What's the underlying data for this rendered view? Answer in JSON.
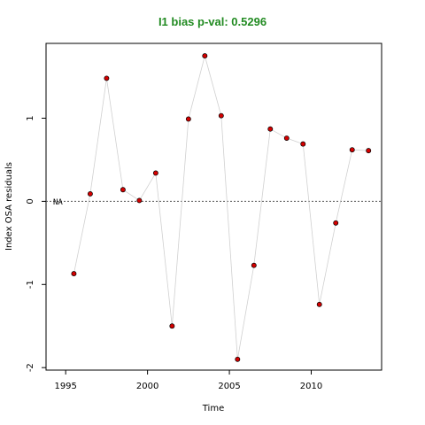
{
  "chart_data": {
    "type": "scatter",
    "title": "I1 bias p-val: 0.5296",
    "xlabel": "Time",
    "ylabel": "Index OSA residuals",
    "xlim": [
      1993.8,
      2014.3
    ],
    "ylim": [
      -2.03,
      1.9
    ],
    "xticks": [
      1995,
      2000,
      2005,
      2010
    ],
    "xtick_labels": [
      "1995",
      "2000",
      "2005",
      "2010"
    ],
    "yticks": [
      -2,
      -1,
      0,
      1
    ],
    "ytick_labels": [
      "-2",
      "-1",
      "0",
      "1"
    ],
    "reference_line": 0,
    "annotation": "NA",
    "grid": false,
    "colors": {
      "title": "#228b22",
      "points": "#d40000",
      "point_edge": "#000000",
      "connector": "#d0d0d0",
      "reference": "#555555"
    },
    "x": [
      1995.5,
      1996.5,
      1997.5,
      1998.5,
      1999.5,
      2000.5,
      2001.5,
      2002.5,
      2003.5,
      2004.5,
      2005.5,
      2006.5,
      2007.5,
      2008.5,
      2009.5,
      2010.5,
      2011.5,
      2012.5,
      2013.5
    ],
    "y": [
      -0.87,
      0.09,
      1.48,
      0.14,
      0.01,
      0.34,
      -1.5,
      0.99,
      1.75,
      1.03,
      -1.9,
      -0.77,
      0.87,
      0.76,
      0.69,
      -1.24,
      -0.26,
      0.62,
      0.61
    ]
  }
}
